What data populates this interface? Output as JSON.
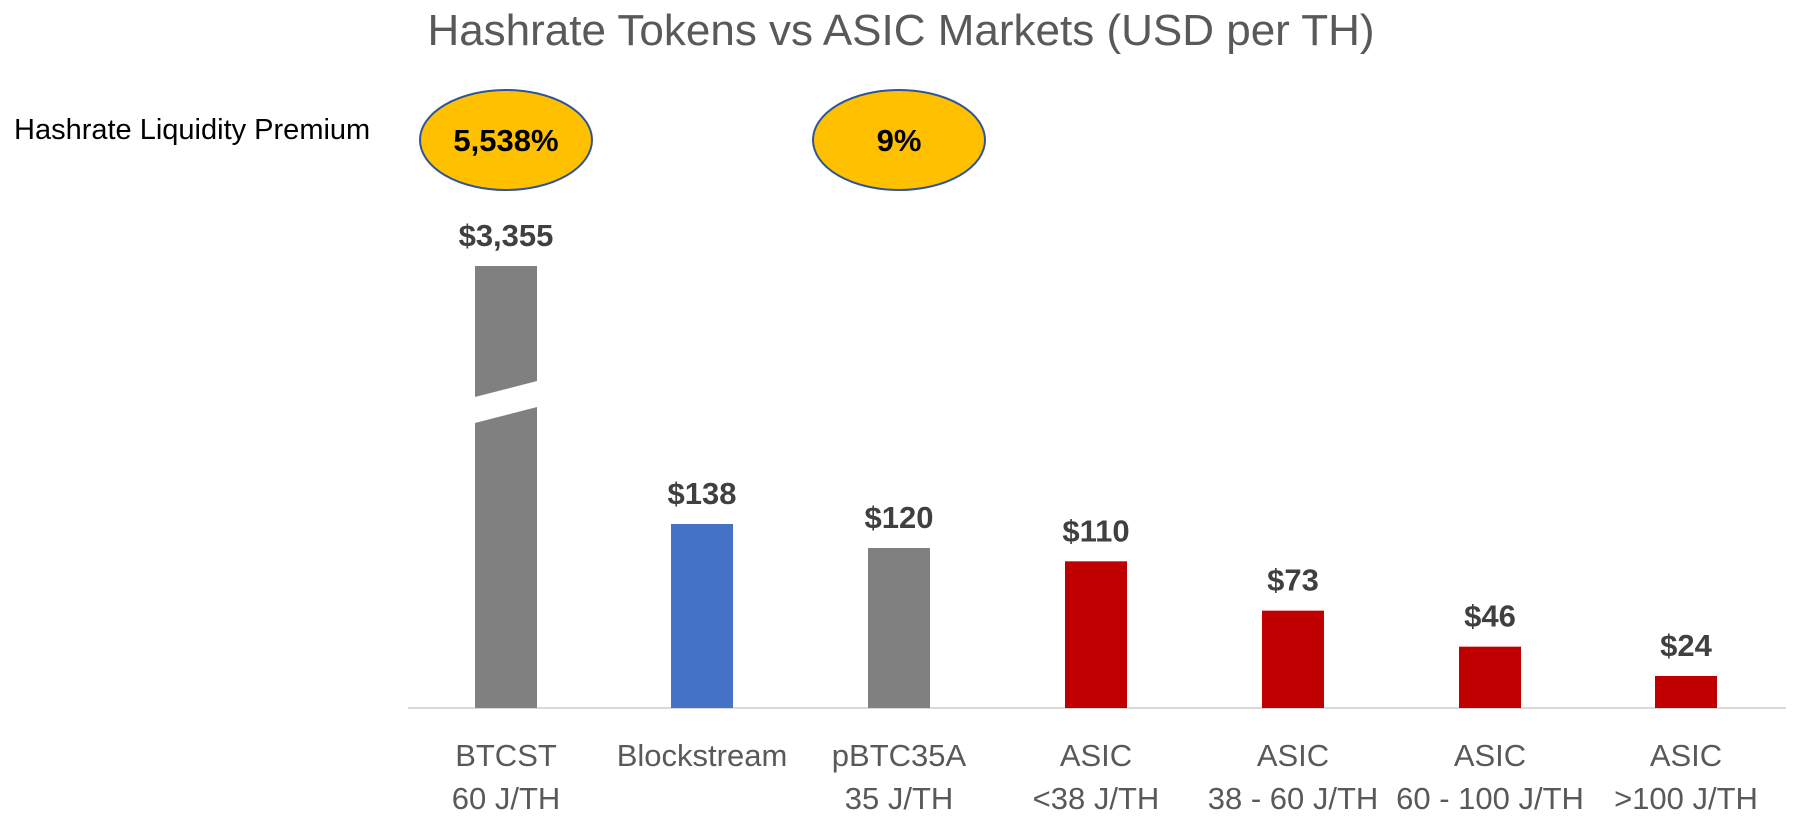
{
  "chart_data": {
    "type": "bar",
    "title": "Hashrate Tokens vs ASIC Markets (USD per TH)",
    "xlabel": "",
    "ylabel": "",
    "axis_broken": true,
    "premium_label": "Hashrate Liquidity Premium",
    "categories": [
      [
        "BTCST",
        "60 J/TH"
      ],
      [
        "Blockstream"
      ],
      [
        "pBTC35A",
        "35 J/TH"
      ],
      [
        "ASIC",
        "<38 J/TH"
      ],
      [
        "ASIC",
        "38 - 60 J/TH"
      ],
      [
        "ASIC",
        "60 - 100 J/TH"
      ],
      [
        "ASIC",
        ">100 J/TH"
      ]
    ],
    "values": [
      3355,
      138,
      120,
      110,
      73,
      46,
      24
    ],
    "value_labels": [
      "$3,355",
      "$138",
      "$120",
      "$110",
      "$73",
      "$46",
      "$24"
    ],
    "bar_colors": [
      "#808080",
      "#4472C4",
      "#808080",
      "#C00000",
      "#C00000",
      "#C00000",
      "#C00000"
    ],
    "premiums": [
      {
        "text": "5,538%",
        "category_index": 0
      },
      {
        "text": "9%",
        "category_index": 2
      }
    ],
    "premium_fill": "#FFC000",
    "premium_stroke": "#2F5597",
    "axis_color": "#D9D9D9"
  }
}
